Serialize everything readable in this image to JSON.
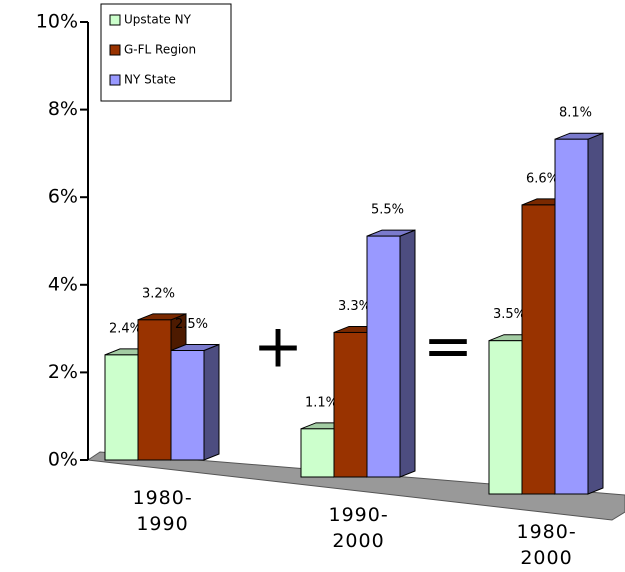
{
  "chart_data": {
    "type": "bar3d",
    "categories": [
      "1980-1990",
      "1990-2000",
      "1980-2000"
    ],
    "series": [
      {
        "name": "Upstate NY",
        "color": "#ccffcc",
        "values": [
          2.4,
          1.1,
          3.5
        ],
        "value_labels": [
          "2.4%",
          "1.1%",
          "3.5%"
        ]
      },
      {
        "name": "G-FL Region",
        "color": "#993300",
        "values": [
          3.2,
          3.3,
          6.6
        ],
        "value_labels": [
          "3.2%",
          "3.3%",
          "6.6%"
        ]
      },
      {
        "name": "NY State",
        "color": "#9999ff",
        "values": [
          2.5,
          5.5,
          8.1
        ],
        "value_labels": [
          "2.5%",
          "5.5%",
          "8.1%"
        ]
      }
    ],
    "ylim": [
      0,
      10
    ],
    "yticks": [
      {
        "value": 0,
        "label": "0%"
      },
      {
        "value": 2,
        "label": "2%"
      },
      {
        "value": 4,
        "label": "4%"
      },
      {
        "value": 6,
        "label": "6%"
      },
      {
        "value": 8,
        "label": "8%"
      },
      {
        "value": 10,
        "label": "10%"
      }
    ],
    "annotations": [
      "+",
      "="
    ]
  }
}
